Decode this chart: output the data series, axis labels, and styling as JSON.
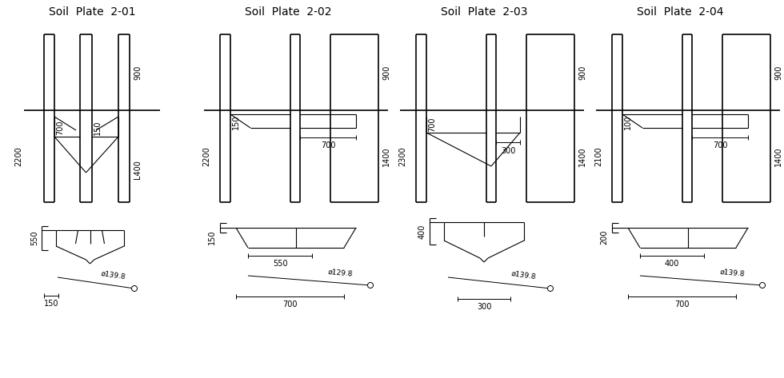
{
  "titles": [
    "Soil  Plate  2-01",
    "Soil  Plate  2-02",
    "Soil  Plate  2-03",
    "Soil  Plate  2-04"
  ],
  "bg_color": "#ffffff",
  "line_color": "#000000",
  "font_size": 7,
  "title_font_size": 10
}
